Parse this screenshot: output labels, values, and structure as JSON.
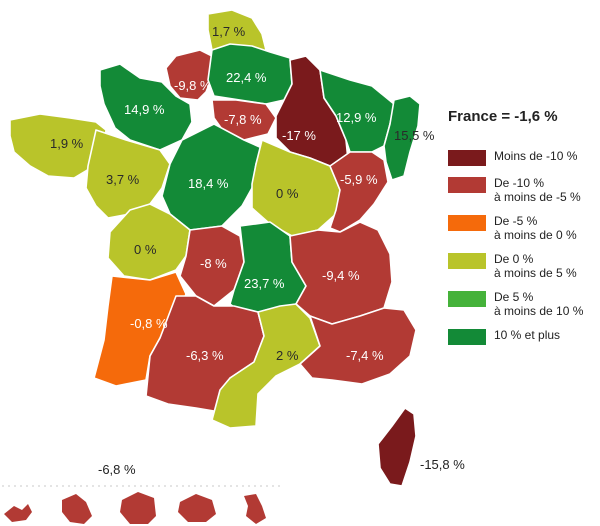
{
  "colors": {
    "lt_m10": "#7a1a1c",
    "m10_m5": "#b23a34",
    "m5_0": "#f56a0b",
    "0_5": "#b9c42a",
    "5_10": "#45b23a",
    "10_plus": "#138a37"
  },
  "legend": {
    "title": "France = -1,6 %",
    "items": [
      {
        "color_key": "lt_m10",
        "line1": "Moins de -10 %",
        "line2": ""
      },
      {
        "color_key": "m10_m5",
        "line1": "De -10 %",
        "line2": "à moins de -5 %"
      },
      {
        "color_key": "m5_0",
        "line1": "De -5 %",
        "line2": "à moins de 0 %"
      },
      {
        "color_key": "0_5",
        "line1": "De 0 %",
        "line2": "à moins de 5 %"
      },
      {
        "color_key": "5_10",
        "line1": "De 5 %",
        "line2": "à moins de 10 %"
      },
      {
        "color_key": "10_plus",
        "line1": "10 % et plus",
        "line2": ""
      }
    ]
  },
  "regions": [
    {
      "id": "nord",
      "value": "1,7 %",
      "color_key": "0_5"
    },
    {
      "id": "manche",
      "value": "14,9 %",
      "color_key": "10_plus"
    },
    {
      "id": "picardie",
      "value": "-9,8 %",
      "color_key": "m10_m5"
    },
    {
      "id": "nord-est-paris",
      "value": "22,4 %",
      "color_key": "10_plus"
    },
    {
      "id": "ile-de-france",
      "value": "-7,8 %",
      "color_key": "m10_m5"
    },
    {
      "id": "champagne",
      "value": "-17 %",
      "color_key": "lt_m10"
    },
    {
      "id": "lorraine",
      "value": "12,9 %",
      "color_key": "10_plus"
    },
    {
      "id": "alsace",
      "value": "15,5 %",
      "color_key": "10_plus"
    },
    {
      "id": "bretagne",
      "value": "1,9 %",
      "color_key": "0_5"
    },
    {
      "id": "loire-ouest",
      "value": "3,7 %",
      "color_key": "0_5"
    },
    {
      "id": "centre",
      "value": "18,4 %",
      "color_key": "10_plus"
    },
    {
      "id": "bourgogne",
      "value": "0 %",
      "color_key": "0_5"
    },
    {
      "id": "franche-comte",
      "value": "-5,9 %",
      "color_key": "m10_m5"
    },
    {
      "id": "poitou",
      "value": "0 %",
      "color_key": "0_5"
    },
    {
      "id": "limousin",
      "value": "-8 %",
      "color_key": "m10_m5"
    },
    {
      "id": "auvergne",
      "value": "23,7 %",
      "color_key": "10_plus"
    },
    {
      "id": "rhone-alpes",
      "value": "-9,4 %",
      "color_key": "m10_m5"
    },
    {
      "id": "aquitaine",
      "value": "-0,8 %",
      "color_key": "m5_0"
    },
    {
      "id": "midi-pyrenees",
      "value": "-6,3 %",
      "color_key": "m10_m5"
    },
    {
      "id": "languedoc",
      "value": "2 %",
      "color_key": "0_5"
    },
    {
      "id": "paca",
      "value": "-7,4 %",
      "color_key": "m10_m5"
    },
    {
      "id": "corse",
      "value": "-15,8 %",
      "color_key": "lt_m10"
    }
  ],
  "dom": {
    "value": "-6,8 %",
    "color_key": "m10_m5"
  }
}
